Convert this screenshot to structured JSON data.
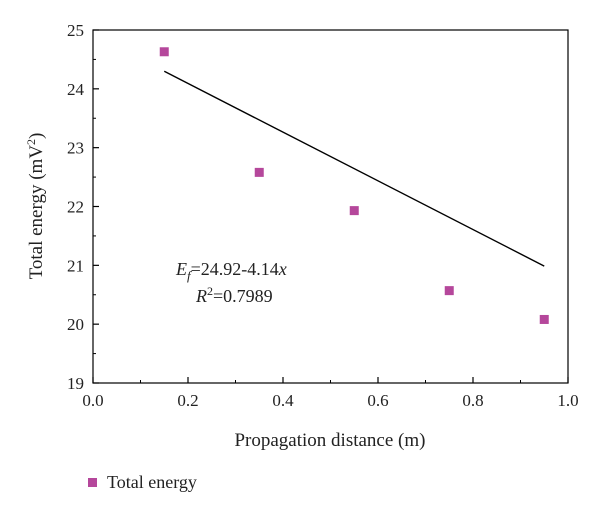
{
  "chart_data": {
    "type": "scatter",
    "xlabel": "Propagation distance (m)",
    "ylabel_main": "Total energy (mV",
    "ylabel_sup": "2",
    "ylabel_close": ")",
    "xlim": [
      0.0,
      1.0
    ],
    "ylim": [
      19,
      25
    ],
    "xticks": [
      "0.0",
      "0.2",
      "0.4",
      "0.6",
      "0.8",
      "1.0"
    ],
    "yticks": [
      "19",
      "20",
      "21",
      "22",
      "23",
      "24",
      "25"
    ],
    "series": [
      {
        "name": "Total energy",
        "color": "#b5479b",
        "marker": "square",
        "points": [
          {
            "x": 0.15,
            "y": 24.63
          },
          {
            "x": 0.35,
            "y": 22.58
          },
          {
            "x": 0.55,
            "y": 21.93
          },
          {
            "x": 0.75,
            "y": 20.57
          },
          {
            "x": 0.95,
            "y": 20.08
          }
        ]
      }
    ],
    "fit_line": {
      "intercept": 24.92,
      "slope": -4.14,
      "x_start": 0.15,
      "x_end": 0.95,
      "color": "#000000"
    },
    "annotation": {
      "eq_symbol": "E",
      "eq_sub": "f",
      "eq_body": "=24.92-4.14",
      "eq_var": "x",
      "r2_symbol": "R",
      "r2_sup": "2",
      "r2_value": "=0.7989"
    },
    "legend": {
      "position": "bottom-left",
      "label": "Total energy"
    },
    "grid": false
  }
}
